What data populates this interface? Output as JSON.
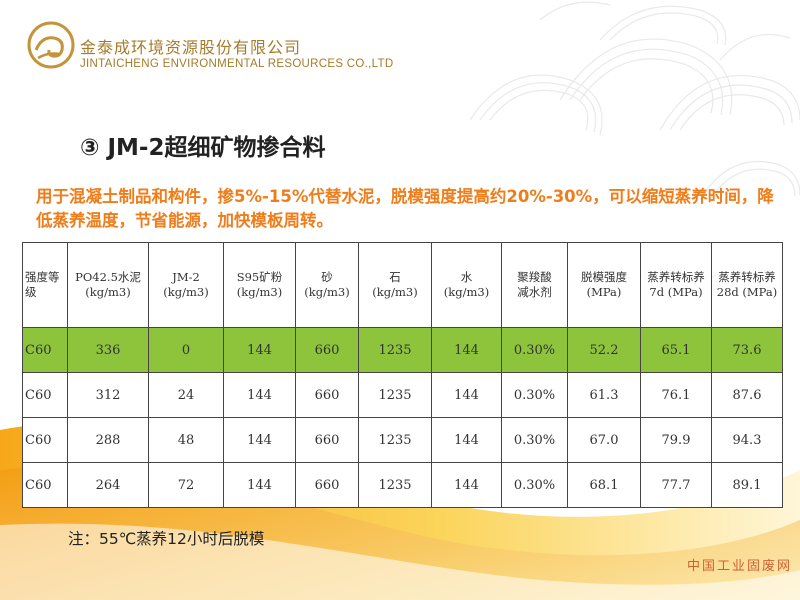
{
  "header": {
    "company_cn": "金泰成环境资源股份有限公司",
    "company_en": "JINTAICHENG ENVIRONMENTAL RESOURCES CO.,LTD",
    "logo_icon": "spiral-wave-logo-icon"
  },
  "heading": "③ JM-2超细矿物掺合料",
  "description": "用于混凝土制品和构件，掺5%-15%代替水泥，脱模强度提高约20%-30%，可以缩短蒸养时间，降低蒸养温度，节省能源，加快模板周转。",
  "table": {
    "headers": [
      {
        "l1": "强度等",
        "l2": "级"
      },
      {
        "l1": "PO42.5水泥",
        "l2": "(kg/m3)"
      },
      {
        "l1": "JM-2",
        "l2": "(kg/m3)"
      },
      {
        "l1": "S95矿粉",
        "l2": "(kg/m3)"
      },
      {
        "l1": "砂",
        "l2": "(kg/m3)"
      },
      {
        "l1": "石",
        "l2": "(kg/m3)"
      },
      {
        "l1": "水",
        "l2": "(kg/m3)"
      },
      {
        "l1": "聚羧酸",
        "l2": "减水剂"
      },
      {
        "l1": "脱模强度",
        "l2": "(MPa)"
      },
      {
        "l1": "蒸养转标养",
        "l2": "7d (MPa)"
      },
      {
        "l1": "蒸养转标养",
        "l2": "28d (MPa)"
      }
    ],
    "rows": [
      [
        "C60",
        "336",
        "0",
        "144",
        "660",
        "1235",
        "144",
        "0.30%",
        "52.2",
        "65.1",
        "73.6"
      ],
      [
        "C60",
        "312",
        "24",
        "144",
        "660",
        "1235",
        "144",
        "0.30%",
        "61.3",
        "76.1",
        "87.6"
      ],
      [
        "C60",
        "288",
        "48",
        "144",
        "660",
        "1235",
        "144",
        "0.30%",
        "67.0",
        "79.9",
        "94.3"
      ],
      [
        "C60",
        "264",
        "72",
        "144",
        "660",
        "1235",
        "144",
        "0.30%",
        "68.1",
        "77.7",
        "89.1"
      ]
    ]
  },
  "note": "注：55℃蒸养12小时后脱模",
  "watermark": "中国工业固废网",
  "colors": {
    "brand": "#a57b2a",
    "accent_orange": "#ef7d1a",
    "highlight_row": "#8dc43c",
    "wave_gold": "#f5b21b"
  }
}
